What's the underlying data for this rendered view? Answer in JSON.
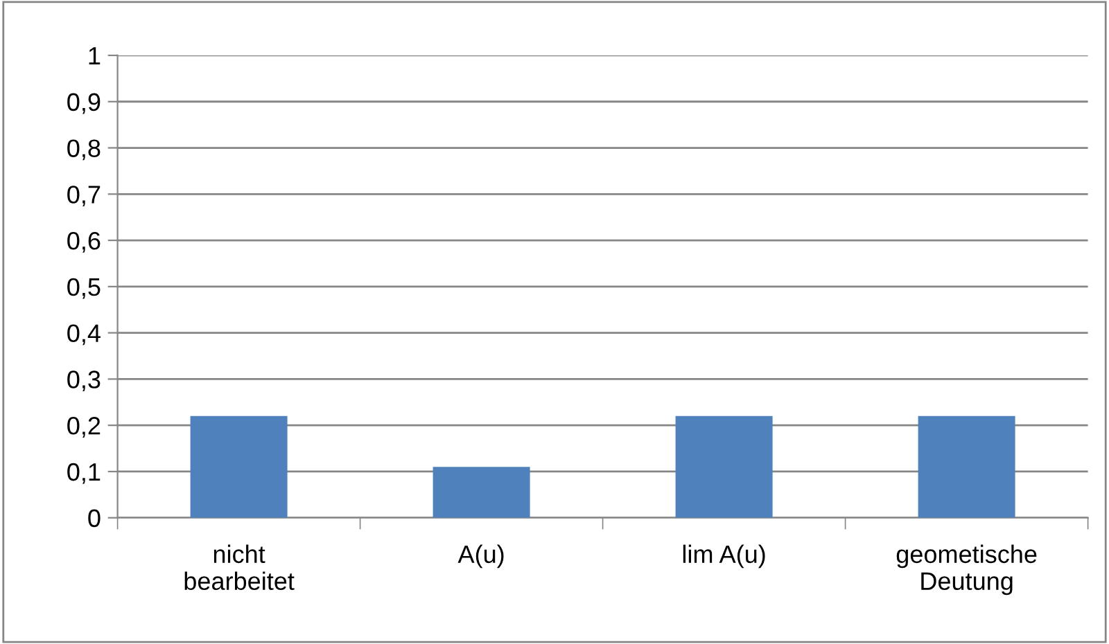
{
  "chart_data": {
    "type": "bar",
    "categories": [
      "nicht\nbearbeitet",
      "A(u)",
      "lim A(u)",
      "geometische\nDeutung"
    ],
    "values": [
      0.22,
      0.11,
      0.22,
      0.22
    ],
    "color": "#4f81bd",
    "ylim": [
      0,
      1
    ],
    "yticks": [
      0,
      {
        "value": 0.1,
        "label": "0,1"
      },
      {
        "value": 0.2,
        "label": "0,2"
      },
      {
        "value": 0.3,
        "label": "0,3"
      },
      {
        "value": 0.4,
        "label": "0,4"
      },
      {
        "value": 0.5,
        "label": "0,5"
      },
      {
        "value": 0.6,
        "label": "0,6"
      },
      {
        "value": 0.7,
        "label": "0,7"
      },
      {
        "value": 0.8,
        "label": "0,8"
      },
      {
        "value": 0.9,
        "label": "0,9"
      },
      1
    ],
    "grid": "y"
  }
}
